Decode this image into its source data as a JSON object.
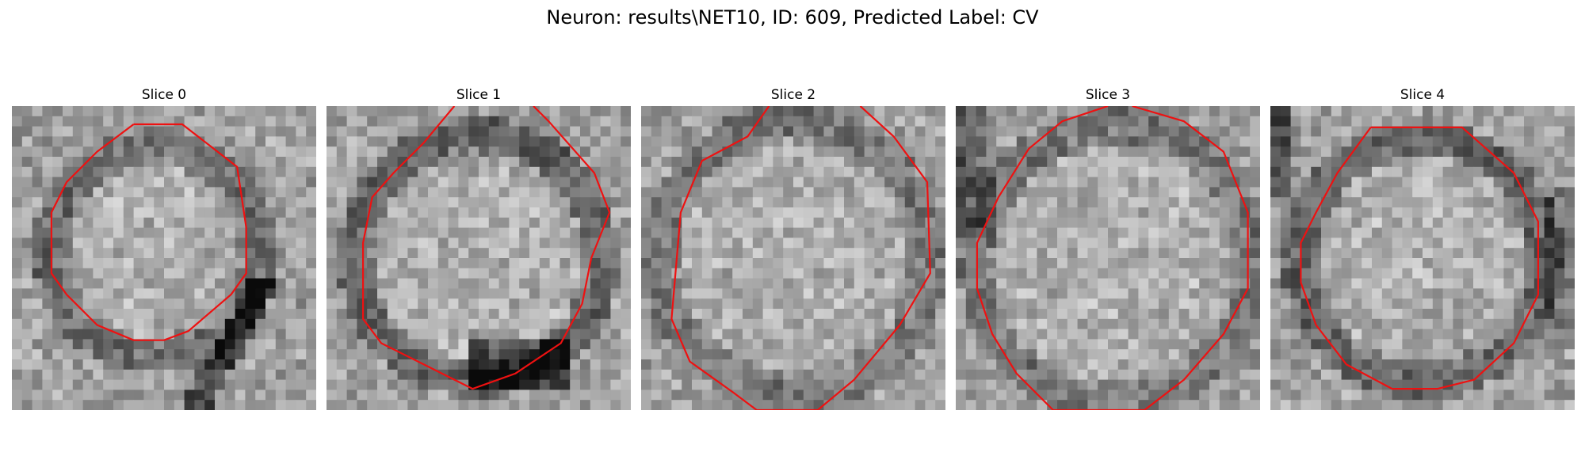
{
  "figure": {
    "title": "Neuron: results\\NET10, ID: 609, Predicted Label: CV"
  },
  "colors": {
    "contour": "#ee1111",
    "background": "#ffffff"
  },
  "slices": [
    {
      "label": "Slice 0",
      "membrane": "dark-ring",
      "notes": "dark diagonal band lower right"
    },
    {
      "label": "Slice 1",
      "membrane": "dark-ring",
      "notes": "dark region at bottom"
    },
    {
      "label": "Slice 2",
      "membrane": "faint",
      "notes": "bright interior"
    },
    {
      "label": "Slice 3",
      "membrane": "faint",
      "notes": "dark upper-left corner"
    },
    {
      "label": "Slice 4",
      "membrane": "dark-ring",
      "notes": "dark left edge"
    }
  ]
}
